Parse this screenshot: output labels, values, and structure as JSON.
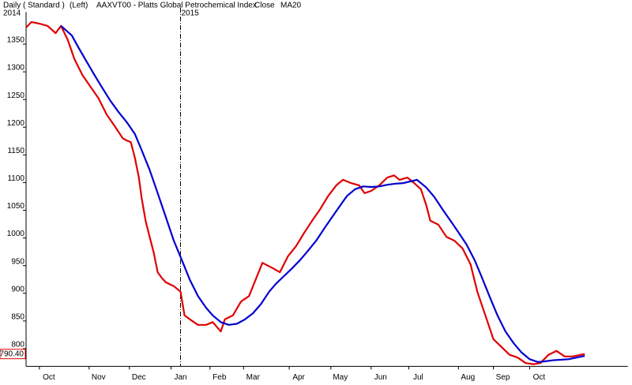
{
  "chart_data": {
    "type": "line",
    "header": [
      "Daily ( Standard )",
      "(Left)",
      "AAXVT00 - Platts Global Petrochemical Index"
    ],
    "year_labels": [
      {
        "value": 0,
        "label": "2014"
      },
      {
        "value": 115,
        "label": "2015"
      }
    ],
    "xlim": [
      0,
      448
    ],
    "xticks": [
      {
        "value": 17,
        "label": "Oct"
      },
      {
        "value": 54,
        "label": "Nov"
      },
      {
        "value": 84,
        "label": "Dec"
      },
      {
        "value": 115,
        "label": "Jan"
      },
      {
        "value": 144,
        "label": "Feb"
      },
      {
        "value": 169,
        "label": "Mar"
      },
      {
        "value": 203,
        "label": "Apr"
      },
      {
        "value": 234,
        "label": "May"
      },
      {
        "value": 264,
        "label": "Jun"
      },
      {
        "value": 292,
        "label": "Jul"
      },
      {
        "value": 329,
        "label": "Aug"
      },
      {
        "value": 355,
        "label": "Sep"
      },
      {
        "value": 382,
        "label": "Oct"
      }
    ],
    "ylim": [
      768,
      1408
    ],
    "yticks": [
      800,
      850,
      900,
      950,
      1000,
      1050,
      1100,
      1150,
      1200,
      1250,
      1300,
      1350
    ],
    "series": [
      {
        "name": "Close",
        "color": "#e00000",
        "last_value_label": "790.40",
        "x": [
          0,
          4,
          10,
          16,
          22,
          26,
          31,
          36,
          42,
          48,
          54,
          60,
          66,
          72,
          75,
          78,
          81,
          84,
          86,
          89,
          92,
          95,
          98,
          101,
          104,
          110,
          115,
          118,
          122,
          128,
          134,
          139,
          145,
          148,
          154,
          160,
          166,
          172,
          176,
          184,
          189,
          195,
          201,
          207,
          213,
          219,
          225,
          231,
          236,
          242,
          248,
          252,
          257,
          263,
          269,
          274,
          278,
          284,
          289,
          294,
          298,
          301,
          307,
          313,
          319,
          325,
          331,
          336,
          342,
          348,
          354,
          360,
          366,
          372,
          378,
          383,
          389,
          395,
          401,
          407,
          413,
          416
        ],
        "values": [
          1380,
          1390,
          1387,
          1383,
          1370,
          1383,
          1358,
          1323,
          1294,
          1273,
          1252,
          1223,
          1202,
          1180,
          1176,
          1173,
          1145,
          1109,
          1073,
          1031,
          1002,
          974,
          938,
          928,
          920,
          913,
          903,
          860,
          853,
          843,
          843,
          848,
          831,
          853,
          860,
          885,
          895,
          931,
          955,
          945,
          938,
          967,
          985,
          1009,
          1031,
          1052,
          1076,
          1095,
          1105,
          1099,
          1095,
          1081,
          1085,
          1095,
          1109,
          1113,
          1105,
          1109,
          1099,
          1088,
          1059,
          1031,
          1024,
          1002,
          995,
          981,
          952,
          903,
          860,
          817,
          803,
          789,
          784,
          774,
          772,
          774,
          789,
          796,
          786,
          786,
          789,
          790.4
        ]
      },
      {
        "name": "MA20",
        "color": "#0000d0",
        "x": [
          26,
          34,
          39,
          45,
          51,
          57,
          63,
          69,
          75,
          81,
          86,
          92,
          98,
          104,
          110,
          116,
          122,
          128,
          134,
          139,
          145,
          151,
          157,
          163,
          169,
          175,
          181,
          186,
          192,
          198,
          204,
          210,
          216,
          222,
          228,
          234,
          239,
          245,
          251,
          257,
          263,
          269,
          275,
          281,
          286,
          291,
          298,
          304,
          310,
          316,
          322,
          328,
          334,
          339,
          345,
          351,
          357,
          363,
          369,
          375,
          381,
          386,
          392,
          398,
          404,
          410,
          416
        ],
        "values": [
          1383,
          1366,
          1344,
          1319,
          1294,
          1270,
          1247,
          1227,
          1209,
          1188,
          1159,
          1123,
          1081,
          1038,
          995,
          960,
          924,
          895,
          874,
          860,
          848,
          843,
          845,
          853,
          864,
          881,
          903,
          917,
          931,
          945,
          960,
          977,
          995,
          1017,
          1038,
          1059,
          1076,
          1088,
          1093,
          1092,
          1093,
          1096,
          1098,
          1099,
          1102,
          1105,
          1091,
          1074,
          1052,
          1031,
          1010,
          988,
          960,
          931,
          895,
          860,
          831,
          810,
          793,
          781,
          776,
          777,
          779,
          780,
          781,
          784,
          787
        ]
      }
    ]
  }
}
